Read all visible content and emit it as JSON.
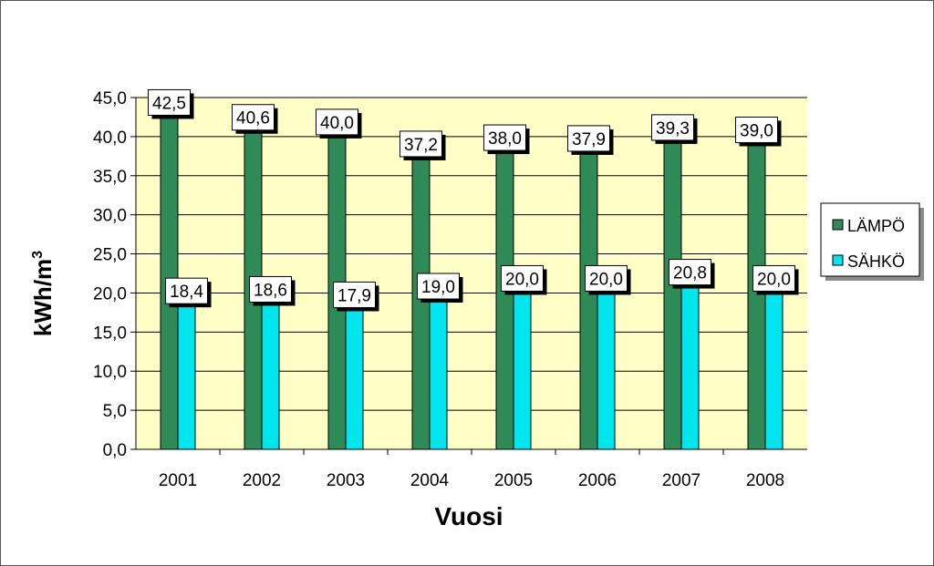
{
  "chart_data": {
    "type": "bar",
    "categories": [
      "2001",
      "2002",
      "2003",
      "2004",
      "2005",
      "2006",
      "2007",
      "2008"
    ],
    "series": [
      {
        "name": "LÄMPÖ",
        "values": [
          42.5,
          40.6,
          40.0,
          37.2,
          38.0,
          37.9,
          39.3,
          39.0
        ],
        "labels": [
          "42,5",
          "40,6",
          "40,0",
          "37,2",
          "38,0",
          "37,9",
          "39,3",
          "39,0"
        ],
        "color": "#2e8b57"
      },
      {
        "name": "SÄHKÖ",
        "values": [
          18.4,
          18.6,
          17.9,
          19.0,
          20.0,
          20.0,
          20.8,
          20.0
        ],
        "labels": [
          "18,4",
          "18,6",
          "17,9",
          "19,0",
          "20,0",
          "20,0",
          "20,8",
          "20,0"
        ],
        "color": "#00e5ee"
      }
    ],
    "xlabel": "Vuosi",
    "ylabel": "kWh/m",
    "ylabel_superscript": "3",
    "ylim": [
      0,
      45
    ],
    "yticks": [
      "0,0",
      "5,0",
      "10,0",
      "15,0",
      "20,0",
      "25,0",
      "30,0",
      "35,0",
      "40,0",
      "45,0"
    ],
    "plot_background": "#ffffc6",
    "grid": true,
    "legend_position": "right"
  }
}
